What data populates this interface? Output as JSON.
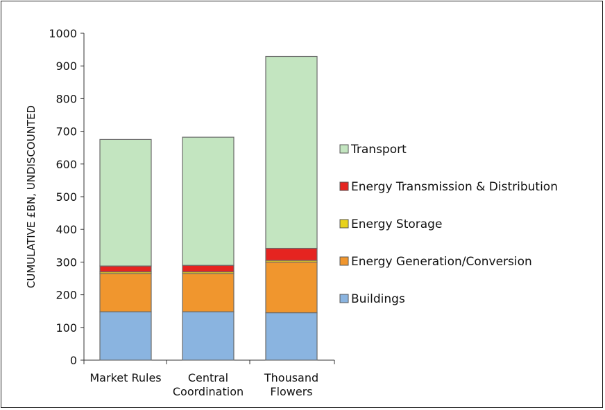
{
  "chart_data": {
    "type": "bar",
    "stacked": true,
    "categories": [
      [
        "Market Rules"
      ],
      [
        "Central",
        "Coordination"
      ],
      [
        "Thousand",
        "Flowers"
      ]
    ],
    "series": [
      {
        "name": "Buildings",
        "color": "#8ab4e0",
        "values": [
          148,
          148,
          145
        ]
      },
      {
        "name": "Energy Generation/Conversion",
        "color": "#f0962e",
        "values": [
          117,
          117,
          155
        ]
      },
      {
        "name": "Energy Storage",
        "color": "#e8d21c",
        "values": [
          5,
          5,
          5
        ]
      },
      {
        "name": "Energy Transmission & Distribution",
        "color": "#e52420",
        "values": [
          18,
          20,
          37
        ]
      },
      {
        "name": "Transport",
        "color": "#c3e5c0",
        "values": [
          387,
          392,
          587
        ]
      }
    ],
    "ylabel": "CUMULATIVE £BN, UNDISCOUNTED",
    "xlabel": "",
    "ylim": [
      0,
      1000
    ],
    "yticks": [
      0,
      100,
      200,
      300,
      400,
      500,
      600,
      700,
      800,
      900,
      1000
    ],
    "grid": false,
    "legend": {
      "placement": "right",
      "order": [
        "Transport",
        "Energy Transmission & Distribution",
        "Energy Storage",
        "Energy Generation/Conversion",
        "Buildings"
      ]
    }
  }
}
